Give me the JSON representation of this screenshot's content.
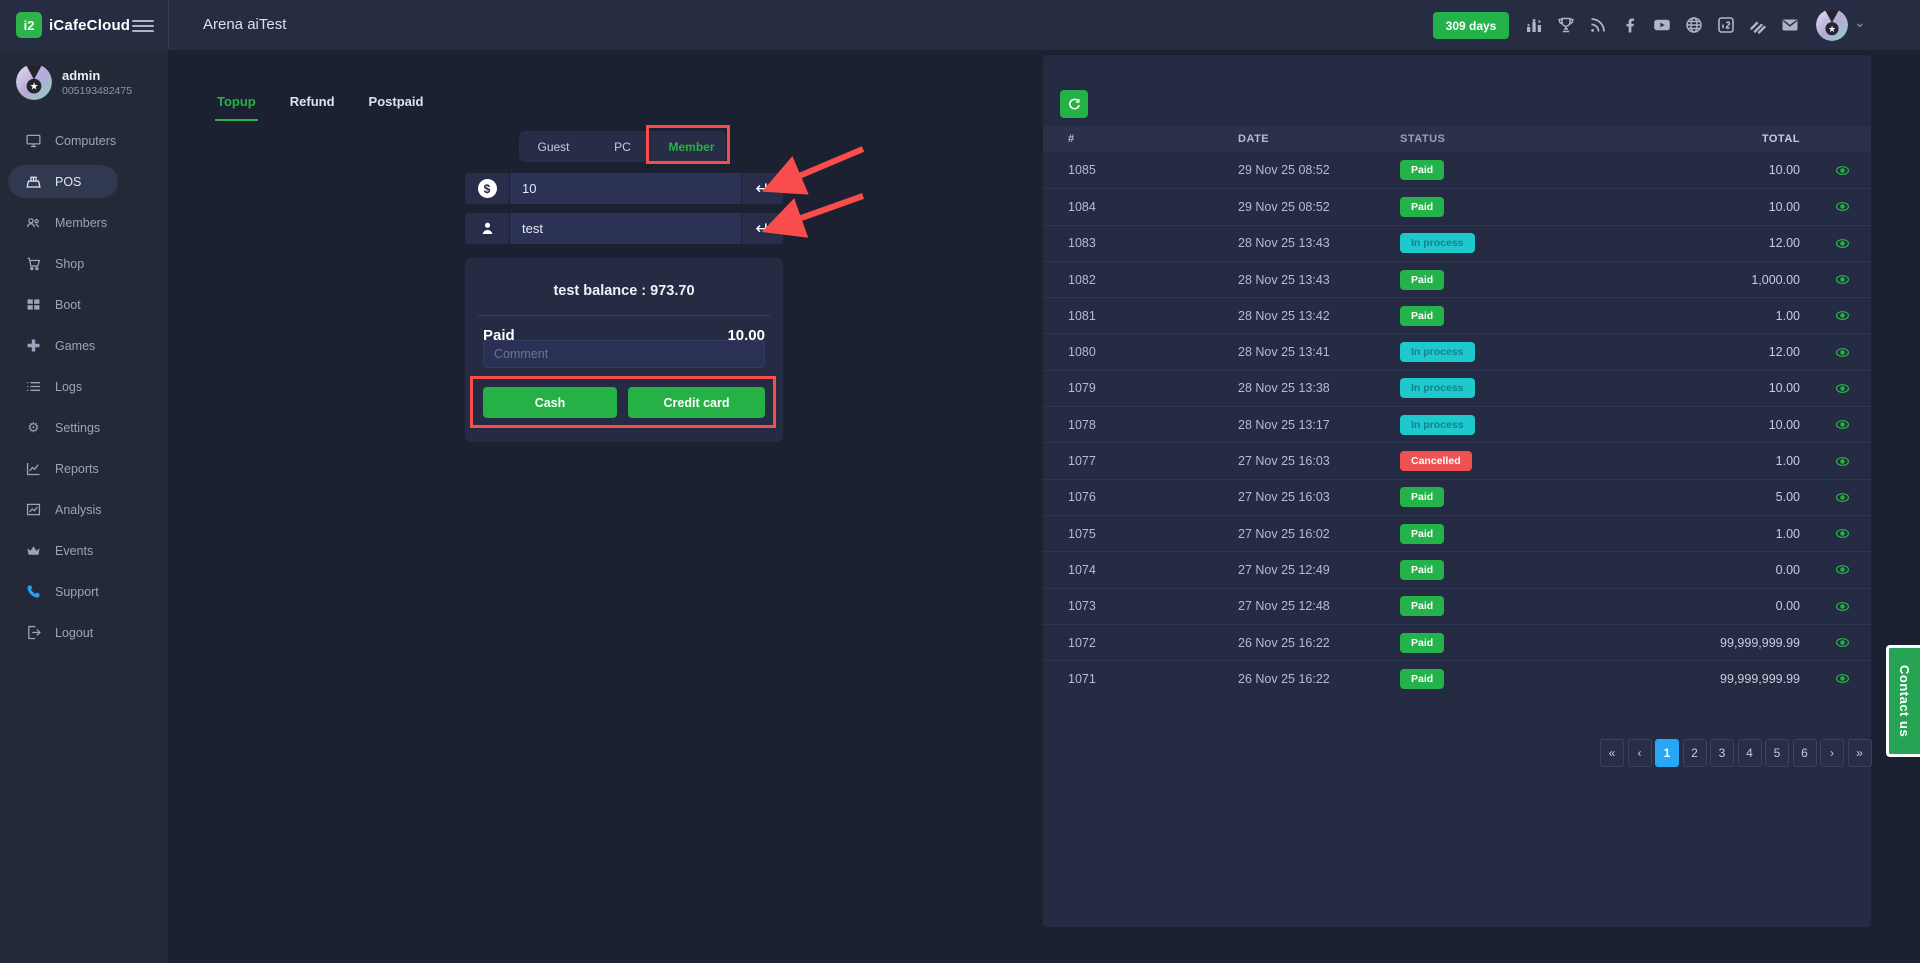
{
  "topbar": {
    "brand": "iCafeCloud",
    "logo_glyph": "i2",
    "page_title": "Arena aiTest",
    "license_badge": "309 days",
    "icons": [
      "ranking",
      "trophy",
      "rss",
      "facebook",
      "youtube",
      "globe",
      "i2logo",
      "stack",
      "mail"
    ]
  },
  "sidebar": {
    "user": {
      "name": "admin",
      "id": "005193482475"
    },
    "items": [
      {
        "label": "Computers",
        "icon": "monitor",
        "active": false
      },
      {
        "label": "POS",
        "icon": "pos",
        "active": true
      },
      {
        "label": "Members",
        "icon": "members",
        "active": false
      },
      {
        "label": "Shop",
        "icon": "shop",
        "active": false
      },
      {
        "label": "Boot",
        "icon": "boot",
        "active": false
      },
      {
        "label": "Games",
        "icon": "games",
        "active": false
      },
      {
        "label": "Logs",
        "icon": "logs",
        "active": false
      },
      {
        "label": "Settings",
        "icon": "settings",
        "active": false
      },
      {
        "label": "Reports",
        "icon": "reports",
        "active": false
      },
      {
        "label": "Analysis",
        "icon": "analysis",
        "active": false
      },
      {
        "label": "Events",
        "icon": "events",
        "active": false
      },
      {
        "label": "Support",
        "icon": "support",
        "active": false,
        "icon_color": "#2e9df4"
      },
      {
        "label": "Logout",
        "icon": "logout",
        "active": false
      }
    ]
  },
  "pos": {
    "tabs": [
      {
        "label": "Topup",
        "active": true
      },
      {
        "label": "Refund",
        "active": false
      },
      {
        "label": "Postpaid",
        "active": false
      }
    ],
    "segments": [
      {
        "label": "Guest",
        "active": false
      },
      {
        "label": "PC",
        "active": false
      },
      {
        "label": "Member",
        "active": true
      }
    ],
    "amount": {
      "value": "10",
      "currency_symbol": "$"
    },
    "member": {
      "value": "test"
    },
    "balance_text": "test balance : 973.70",
    "paid_label": "Paid",
    "paid_value": "10.00",
    "comment_placeholder": "Comment",
    "cash_label": "Cash",
    "credit_label": "Credit card"
  },
  "table": {
    "columns": [
      "#",
      "DATE",
      "STATUS",
      "TOTAL"
    ],
    "rows": [
      {
        "id": "1085",
        "date": "29 Nov 25 08:52",
        "status": "Paid",
        "total": "10.00"
      },
      {
        "id": "1084",
        "date": "29 Nov 25 08:52",
        "status": "Paid",
        "total": "10.00"
      },
      {
        "id": "1083",
        "date": "28 Nov 25 13:43",
        "status": "In process",
        "total": "12.00"
      },
      {
        "id": "1082",
        "date": "28 Nov 25 13:43",
        "status": "Paid",
        "total": "1,000.00"
      },
      {
        "id": "1081",
        "date": "28 Nov 25 13:42",
        "status": "Paid",
        "total": "1.00"
      },
      {
        "id": "1080",
        "date": "28 Nov 25 13:41",
        "status": "In process",
        "total": "12.00"
      },
      {
        "id": "1079",
        "date": "28 Nov 25 13:38",
        "status": "In process",
        "total": "10.00"
      },
      {
        "id": "1078",
        "date": "28 Nov 25 13:17",
        "status": "In process",
        "total": "10.00"
      },
      {
        "id": "1077",
        "date": "27 Nov 25 16:03",
        "status": "Cancelled",
        "total": "1.00"
      },
      {
        "id": "1076",
        "date": "27 Nov 25 16:03",
        "status": "Paid",
        "total": "5.00"
      },
      {
        "id": "1075",
        "date": "27 Nov 25 16:02",
        "status": "Paid",
        "total": "1.00"
      },
      {
        "id": "1074",
        "date": "27 Nov 25 12:49",
        "status": "Paid",
        "total": "0.00"
      },
      {
        "id": "1073",
        "date": "27 Nov 25 12:48",
        "status": "Paid",
        "total": "0.00"
      },
      {
        "id": "1072",
        "date": "26 Nov 25 16:22",
        "status": "Paid",
        "total": "99,999,999.99"
      },
      {
        "id": "1071",
        "date": "26 Nov 25 16:22",
        "status": "Paid",
        "total": "99,999,999.99"
      }
    ]
  },
  "pagination": {
    "items": [
      "«",
      "‹",
      "1",
      "2",
      "3",
      "4",
      "5",
      "6",
      "›",
      "»"
    ],
    "active": "1"
  },
  "contact_label": "Contact us",
  "glyphs": {
    "enter": "↵",
    "chevron_down": "⌄"
  },
  "colors": {
    "green": "#24b24b",
    "cyan": "#1ec9cd",
    "red": "#ee5253",
    "blue": "#27a7f4",
    "annotation": "#f94d4d"
  }
}
